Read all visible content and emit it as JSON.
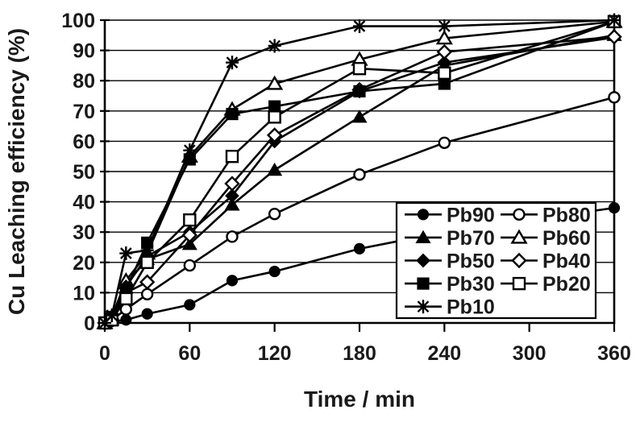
{
  "figure": {
    "background": "#ffffff",
    "foreground": "#1a1a1a",
    "line_color": "#000000"
  },
  "chart_data": {
    "type": "line",
    "title": "",
    "xlabel": "Time / min",
    "ylabel": "Cu Leaching efficiency (%)",
    "xlim": [
      0,
      360
    ],
    "ylim": [
      0,
      100
    ],
    "x_ticks": [
      0,
      60,
      120,
      180,
      240,
      300,
      360
    ],
    "y_ticks": [
      0,
      10,
      20,
      30,
      40,
      50,
      60,
      70,
      80,
      90,
      100
    ],
    "grid": "horizontal",
    "legend_position": "inside-bottom-right",
    "x": [
      0,
      5,
      15,
      30,
      60,
      90,
      120,
      180,
      240,
      360
    ],
    "series": [
      {
        "name": "Pb90",
        "marker": "circle-filled",
        "values": [
          0,
          0.5,
          1,
          3,
          6,
          14,
          17,
          24.5,
          30,
          38
        ]
      },
      {
        "name": "Pb80",
        "marker": "circle-open",
        "values": [
          0,
          1,
          4.5,
          9.5,
          19,
          28.5,
          36,
          49,
          59.5,
          74.5
        ]
      },
      {
        "name": "Pb70",
        "marker": "triangle-filled",
        "values": [
          0,
          1,
          13,
          21,
          26,
          39,
          50.5,
          68,
          85,
          95
        ]
      },
      {
        "name": "Pb60",
        "marker": "triangle-open",
        "values": [
          0,
          2,
          14,
          23,
          55,
          70.5,
          79,
          87,
          94,
          99.5
        ]
      },
      {
        "name": "Pb50",
        "marker": "diamond-filled",
        "values": [
          0,
          1.5,
          12,
          22,
          30,
          42,
          60,
          76.5,
          86,
          94.3
        ]
      },
      {
        "name": "Pb40",
        "marker": "diamond-open",
        "values": [
          0,
          1,
          10,
          13.5,
          29,
          46,
          62,
          77,
          89.5,
          94.5
        ]
      },
      {
        "name": "Pb30",
        "marker": "square-filled",
        "values": [
          0,
          2,
          11,
          26.5,
          54,
          69,
          71.5,
          76.5,
          79,
          99.5
        ]
      },
      {
        "name": "Pb20",
        "marker": "square-open",
        "values": [
          0,
          1,
          8,
          20,
          34,
          55,
          68,
          84,
          82.5,
          99.5
        ]
      },
      {
        "name": "Pb10",
        "marker": "asterisk",
        "values": [
          0,
          2.5,
          23,
          24,
          57,
          86,
          91.5,
          98,
          98,
          100
        ]
      }
    ],
    "legend_rows": [
      [
        "Pb90",
        "Pb80"
      ],
      [
        "Pb70",
        "Pb60"
      ],
      [
        "Pb50",
        "Pb40"
      ],
      [
        "Pb30",
        "Pb20"
      ],
      [
        "Pb10"
      ]
    ]
  }
}
